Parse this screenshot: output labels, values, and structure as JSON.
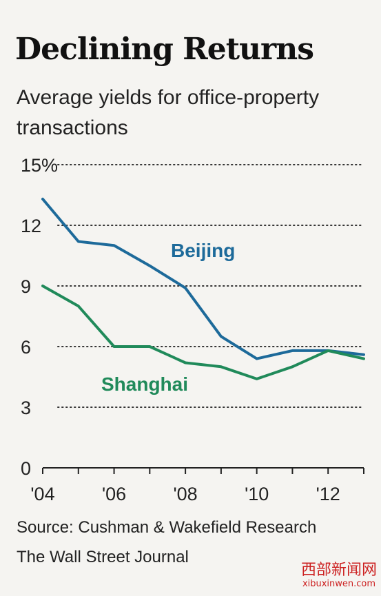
{
  "header": {
    "title": "Declining Returns",
    "subtitle": "Average yields for office-property transactions"
  },
  "footer": {
    "source": "Source: Cushman & Wakefield Research",
    "credit": "The Wall Street Journal"
  },
  "watermark": {
    "main": "西部新闻网",
    "sub": "xibuxinwen.com"
  },
  "chart_data": {
    "type": "line",
    "title": "Declining Returns",
    "subtitle": "Average yields for office-property transactions",
    "xlabel": "",
    "ylabel": "",
    "x": [
      2004,
      2005,
      2006,
      2007,
      2008,
      2009,
      2010,
      2011,
      2012,
      2013
    ],
    "xlim": [
      2004,
      2013
    ],
    "ylim": [
      0,
      15
    ],
    "yticks": [
      0,
      3,
      6,
      9,
      12,
      15
    ],
    "ytick_labels": [
      "0",
      "3",
      "6",
      "9",
      "12",
      "15%"
    ],
    "xticks": [
      2004,
      2006,
      2008,
      2010,
      2012
    ],
    "xtick_labels": [
      "'04",
      "'06",
      "'08",
      "'10",
      "'12"
    ],
    "grid": "horizontal dotted",
    "legend": "inline labels",
    "series": [
      {
        "name": "Beijing",
        "color": "#1d6a9a",
        "values": [
          13.3,
          11.2,
          11.0,
          10.0,
          8.9,
          6.5,
          5.4,
          5.8,
          5.8,
          5.6
        ]
      },
      {
        "name": "Shanghai",
        "color": "#208a5a",
        "values": [
          9.0,
          8.0,
          6.0,
          6.0,
          5.2,
          5.0,
          4.4,
          5.0,
          5.8,
          5.4
        ]
      }
    ]
  }
}
